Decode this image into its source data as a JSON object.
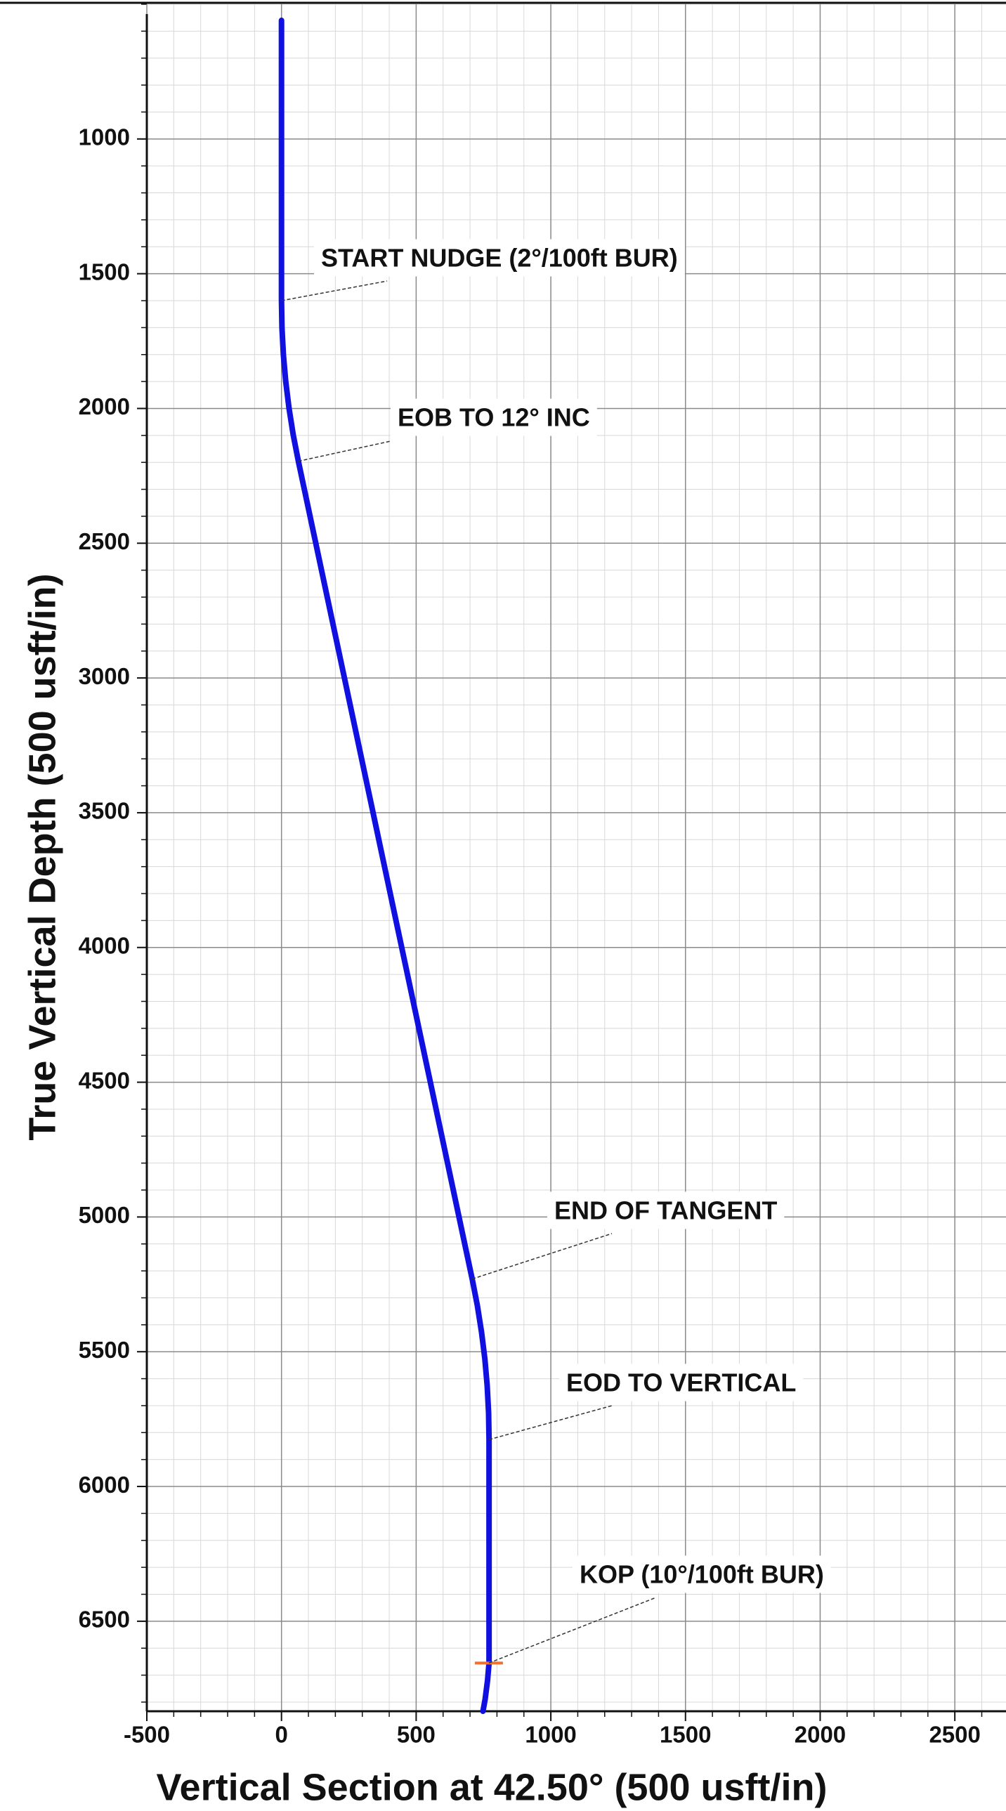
{
  "chart_data": {
    "type": "line",
    "xlabel": "Vertical Section at 42.50° (500 usft/in)",
    "ylabel": "True Vertical Depth (500 usft/in)",
    "xlim": [
      -500,
      2690
    ],
    "ylim": [
      500,
      6834
    ],
    "y_inverted": true,
    "xticks": [
      -500,
      0,
      500,
      1000,
      1500,
      2000,
      2500
    ],
    "yticks": [
      1000,
      1500,
      2000,
      2500,
      3000,
      3500,
      4000,
      4500,
      5000,
      5500,
      6000,
      6500
    ],
    "grid": true,
    "series": [
      {
        "color": "#1010e0",
        "x": [
          0,
          0,
          1.75,
          6.98,
          15.7,
          27.9,
          43.5,
          62.6,
          708,
          727.1,
          742.7,
          755,
          763.7,
          768.9,
          770.6,
          770.6,
          765,
          756,
          748
        ],
        "y": [
          560,
          1600,
          1700,
          1800,
          1899.5,
          1998.7,
          2097.5,
          2195.7,
          5230,
          5328,
          5427,
          5526,
          5626,
          5726,
          5826,
          6655,
          6720,
          6790,
          6834
        ]
      }
    ],
    "marker": {
      "x": 770,
      "y": 6655,
      "color": "#f07030"
    },
    "annotations": [
      {
        "text": "START NUDGE (2°/100ft BUR)",
        "x": 0,
        "y": 1600
      },
      {
        "text": "EOB TO 12° INC",
        "x": 62.6,
        "y": 2195.7
      },
      {
        "text": "END OF TANGENT",
        "x": 708,
        "y": 5230
      },
      {
        "text": "EOD TO VERTICAL",
        "x": 770.6,
        "y": 5826
      },
      {
        "text": "KOP (10°/100ft BUR)",
        "x": 770,
        "y": 6655
      }
    ]
  }
}
